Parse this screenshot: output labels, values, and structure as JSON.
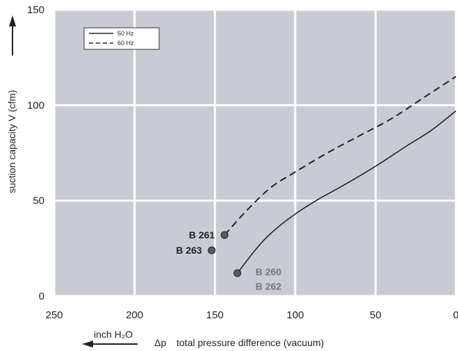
{
  "chart_data": {
    "type": "line",
    "xlabel": "total pressure difference (vacuum)",
    "xlabel_symbol": "Δp",
    "ylabel": "suction capacity V (cfm)",
    "unit_label": "inch H₂O",
    "xlim": [
      250,
      0
    ],
    "ylim": [
      0,
      150
    ],
    "x_reversed": true,
    "x_ticks": [
      250,
      200,
      150,
      100,
      50,
      0
    ],
    "y_ticks": [
      0,
      50,
      100,
      150
    ],
    "grid": true,
    "background": "#c8cbd3",
    "legend": {
      "placement": "top-left",
      "entries": [
        {
          "label": "50 Hz",
          "style": "solid"
        },
        {
          "label": "60 Hz",
          "style": "dashed"
        }
      ]
    },
    "series": [
      {
        "name": "50 Hz",
        "style": "solid",
        "color": "#222222",
        "x": [
          136,
          125,
          115,
          100,
          85,
          70,
          50,
          30,
          15,
          0
        ],
        "y": [
          12,
          24,
          33,
          43,
          51,
          58,
          68,
          79,
          87,
          97
        ]
      },
      {
        "name": "60 Hz",
        "style": "dashed",
        "color": "#222222",
        "x": [
          144,
          130,
          115,
          100,
          80,
          60,
          40,
          20,
          0
        ],
        "y": [
          32,
          45,
          57,
          65,
          75,
          84,
          93,
          104,
          115
        ]
      }
    ],
    "markers": [
      {
        "x": 144,
        "y": 32,
        "label": "B 261",
        "color": "#5a5a5a",
        "label_color": "#222222"
      },
      {
        "x": 152,
        "y": 24,
        "label": "B 263",
        "color": "#5a5a5a",
        "label_color": "#222222"
      },
      {
        "x": 136,
        "y": 12,
        "label": "B 260",
        "label2": "B 262",
        "color": "#5a5a5a",
        "label_color": "#777777"
      }
    ]
  }
}
